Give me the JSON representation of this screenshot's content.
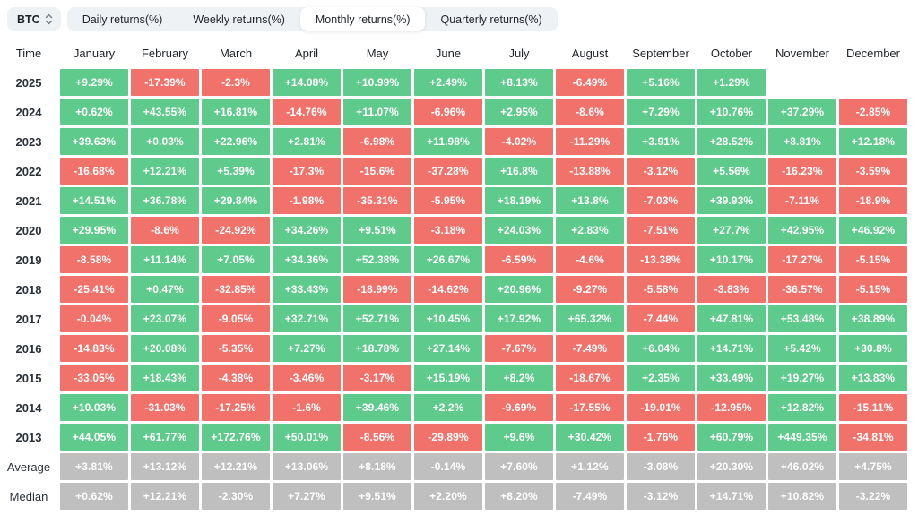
{
  "controls": {
    "symbol": "BTC",
    "tabs": [
      {
        "label": "Daily returns(%)",
        "active": false
      },
      {
        "label": "Weekly returns(%)",
        "active": false
      },
      {
        "label": "Monthly returns(%)",
        "active": true
      },
      {
        "label": "Quarterly returns(%)",
        "active": false
      }
    ]
  },
  "chart_data": {
    "type": "heatmap",
    "title": "BTC Monthly returns(%)",
    "corner_label": "Time",
    "columns": [
      "January",
      "February",
      "March",
      "April",
      "May",
      "June",
      "July",
      "August",
      "September",
      "October",
      "November",
      "December"
    ],
    "rows": [
      {
        "label": "2025",
        "kind": "year",
        "cells": [
          "+9.29%",
          "-17.39%",
          "-2.3%",
          "+14.08%",
          "+10.99%",
          "+2.49%",
          "+8.13%",
          "-6.49%",
          "+5.16%",
          "+1.29%",
          null,
          null
        ]
      },
      {
        "label": "2024",
        "kind": "year",
        "cells": [
          "+0.62%",
          "+43.55%",
          "+16.81%",
          "-14.76%",
          "+11.07%",
          "-6.96%",
          "+2.95%",
          "-8.6%",
          "+7.29%",
          "+10.76%",
          "+37.29%",
          "-2.85%"
        ]
      },
      {
        "label": "2023",
        "kind": "year",
        "cells": [
          "+39.63%",
          "+0.03%",
          "+22.96%",
          "+2.81%",
          "-6.98%",
          "+11.98%",
          "-4.02%",
          "-11.29%",
          "+3.91%",
          "+28.52%",
          "+8.81%",
          "+12.18%"
        ]
      },
      {
        "label": "2022",
        "kind": "year",
        "cells": [
          "-16.68%",
          "+12.21%",
          "+5.39%",
          "-17.3%",
          "-15.6%",
          "-37.28%",
          "+16.8%",
          "-13.88%",
          "-3.12%",
          "+5.56%",
          "-16.23%",
          "-3.59%"
        ]
      },
      {
        "label": "2021",
        "kind": "year",
        "cells": [
          "+14.51%",
          "+36.78%",
          "+29.84%",
          "-1.98%",
          "-35.31%",
          "-5.95%",
          "+18.19%",
          "+13.8%",
          "-7.03%",
          "+39.93%",
          "-7.11%",
          "-18.9%"
        ]
      },
      {
        "label": "2020",
        "kind": "year",
        "cells": [
          "+29.95%",
          "-8.6%",
          "-24.92%",
          "+34.26%",
          "+9.51%",
          "-3.18%",
          "+24.03%",
          "+2.83%",
          "-7.51%",
          "+27.7%",
          "+42.95%",
          "+46.92%"
        ]
      },
      {
        "label": "2019",
        "kind": "year",
        "cells": [
          "-8.58%",
          "+11.14%",
          "+7.05%",
          "+34.36%",
          "+52.38%",
          "+26.67%",
          "-6.59%",
          "-4.6%",
          "-13.38%",
          "+10.17%",
          "-17.27%",
          "-5.15%"
        ]
      },
      {
        "label": "2018",
        "kind": "year",
        "cells": [
          "-25.41%",
          "+0.47%",
          "-32.85%",
          "+33.43%",
          "-18.99%",
          "-14.62%",
          "+20.96%",
          "-9.27%",
          "-5.58%",
          "-3.83%",
          "-36.57%",
          "-5.15%"
        ]
      },
      {
        "label": "2017",
        "kind": "year",
        "cells": [
          "-0.04%",
          "+23.07%",
          "-9.05%",
          "+32.71%",
          "+52.71%",
          "+10.45%",
          "+17.92%",
          "+65.32%",
          "-7.44%",
          "+47.81%",
          "+53.48%",
          "+38.89%"
        ]
      },
      {
        "label": "2016",
        "kind": "year",
        "cells": [
          "-14.83%",
          "+20.08%",
          "-5.35%",
          "+7.27%",
          "+18.78%",
          "+27.14%",
          "-7.67%",
          "-7.49%",
          "+6.04%",
          "+14.71%",
          "+5.42%",
          "+30.8%"
        ]
      },
      {
        "label": "2015",
        "kind": "year",
        "cells": [
          "-33.05%",
          "+18.43%",
          "-4.38%",
          "-3.46%",
          "-3.17%",
          "+15.19%",
          "+8.2%",
          "-18.67%",
          "+2.35%",
          "+33.49%",
          "+19.27%",
          "+13.83%"
        ]
      },
      {
        "label": "2014",
        "kind": "year",
        "cells": [
          "+10.03%",
          "-31.03%",
          "-17.25%",
          "-1.6%",
          "+39.46%",
          "+2.2%",
          "-9.69%",
          "-17.55%",
          "-19.01%",
          "-12.95%",
          "+12.82%",
          "-15.11%"
        ]
      },
      {
        "label": "2013",
        "kind": "year",
        "cells": [
          "+44.05%",
          "+61.77%",
          "+172.76%",
          "+50.01%",
          "-8.56%",
          "-29.89%",
          "+9.6%",
          "+30.42%",
          "-1.76%",
          "+60.79%",
          "+449.35%",
          "-34.81%"
        ]
      },
      {
        "label": "Average",
        "kind": "summary",
        "cells": [
          "+3.81%",
          "+13.12%",
          "+12.21%",
          "+13.06%",
          "+8.18%",
          "-0.14%",
          "+7.60%",
          "+1.12%",
          "-3.08%",
          "+20.30%",
          "+46.02%",
          "+4.75%"
        ]
      },
      {
        "label": "Median",
        "kind": "summary",
        "cells": [
          "+0.62%",
          "+12.21%",
          "-2.30%",
          "+7.27%",
          "+9.51%",
          "+2.20%",
          "+8.20%",
          "-7.49%",
          "-3.12%",
          "+14.71%",
          "+10.82%",
          "-3.22%"
        ]
      }
    ]
  },
  "colors": {
    "positive": "#5ECB8C",
    "negative": "#F0726B",
    "summary": "#BFBFBF",
    "tab_bar_bg": "#EFF2F5",
    "text_dark": "#1E2329",
    "icon_gray": "#707A8A"
  }
}
